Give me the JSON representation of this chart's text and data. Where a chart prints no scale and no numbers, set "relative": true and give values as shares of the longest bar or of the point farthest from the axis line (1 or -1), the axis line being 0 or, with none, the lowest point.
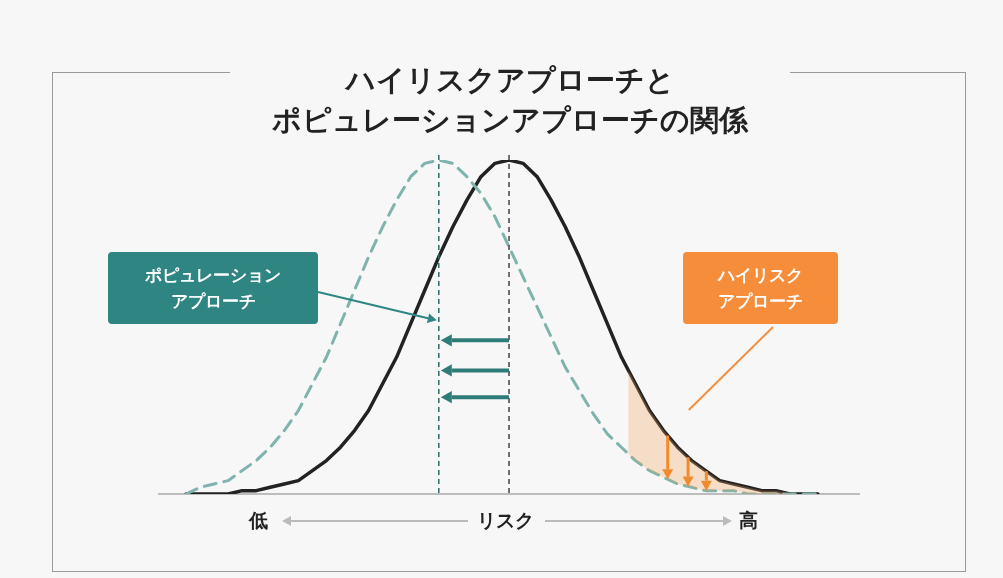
{
  "chart_data": {
    "type": "line",
    "title": "ハイリスクアプローチと",
    "subtitle": "ポピュレーションアプローチの関係",
    "xlabel": "リスク",
    "relative": true,
    "marker": "none",
    "annotations": [
      "ポピュレーションアプローチ",
      "ハイリスクアプローチ",
      "低",
      "高"
    ],
    "categories": [
      null,
      null,
      null,
      null,
      null,
      null,
      null,
      null,
      null,
      null,
      null,
      null,
      null,
      null,
      null,
      null,
      null,
      null,
      null,
      null,
      null,
      null,
      null,
      null,
      null,
      null,
      null,
      null,
      null,
      null,
      null,
      null,
      null,
      null,
      null,
      null,
      null,
      null,
      null,
      null,
      null,
      null,
      null,
      null,
      null,
      null
    ],
    "series": [
      {
        "color": "#7fb3ad",
        "line_style": "dashed",
        "values": [
          0,
          0.02,
          0.03,
          0.04,
          0.07,
          0.1,
          0.14,
          0.19,
          0.25,
          0.33,
          0.41,
          0.51,
          0.61,
          0.71,
          0.8,
          0.88,
          0.95,
          0.99,
          1,
          0.99,
          0.95,
          0.9,
          0.83,
          0.74,
          0.65,
          0.56,
          0.47,
          0.38,
          0.31,
          0.24,
          0.18,
          0.14,
          0.1,
          0.07,
          0.05,
          0.03,
          0.02,
          0.01,
          0.01,
          0.01,
          0,
          0,
          0,
          0,
          0,
          0
        ]
      },
      {
        "color": "#222222",
        "line_style": "solid",
        "values": [
          0,
          0,
          0,
          0,
          0.01,
          0.01,
          0.02,
          0.03,
          0.04,
          0.07,
          0.1,
          0.14,
          0.19,
          0.25,
          0.33,
          0.41,
          0.51,
          0.61,
          0.71,
          0.8,
          0.88,
          0.95,
          0.99,
          1,
          0.99,
          0.95,
          0.88,
          0.8,
          0.71,
          0.61,
          0.51,
          0.41,
          0.33,
          0.25,
          0.19,
          0.14,
          0.1,
          0.07,
          0.04,
          0.03,
          0.02,
          0.01,
          0.01,
          0,
          0,
          0
        ]
      }
    ]
  }
}
